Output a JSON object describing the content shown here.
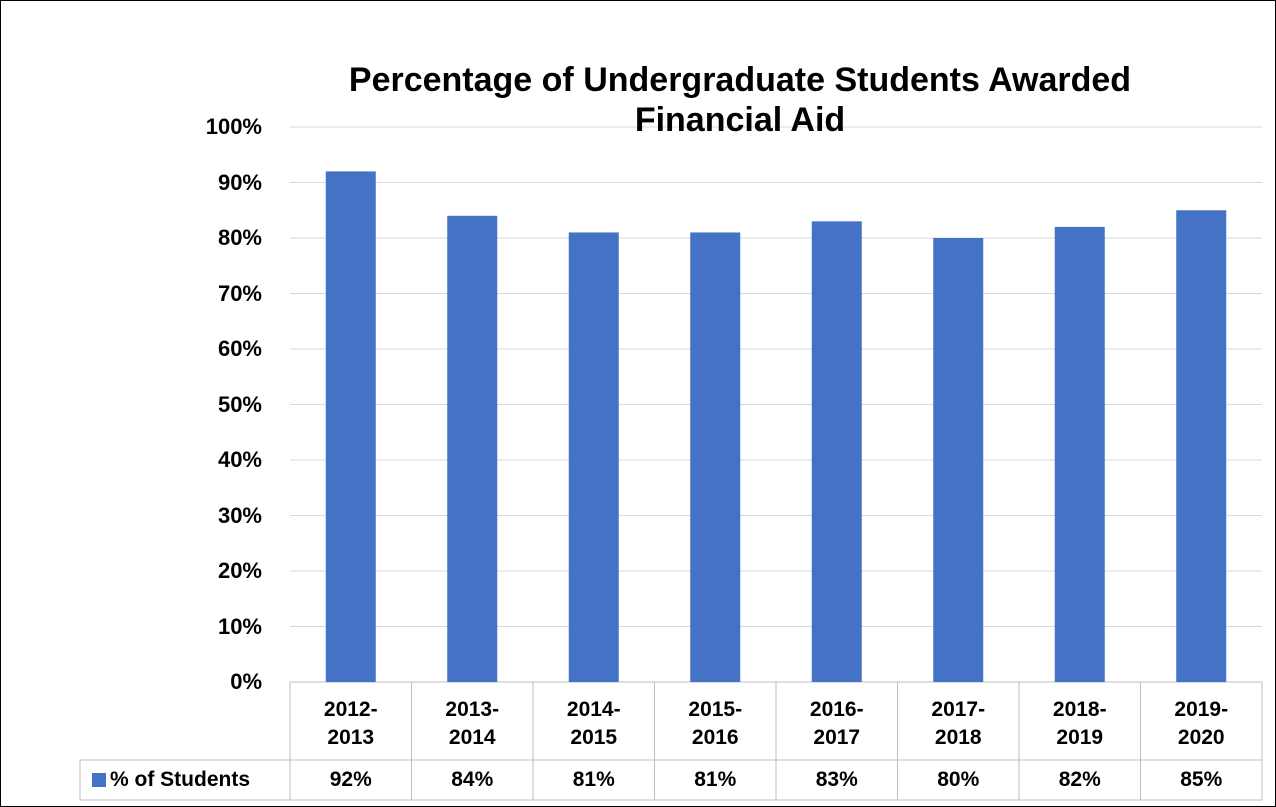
{
  "chart_data": {
    "type": "bar",
    "title": "Percentage of Undergraduate Students Awarded Financial Aid",
    "categories": [
      "2012-2013",
      "2013-2014",
      "2014-2015",
      "2015-2016",
      "2016-2017",
      "2017-2018",
      "2018-2019",
      "2019-2020"
    ],
    "series": [
      {
        "name": "% of Students",
        "color": "#4472c4",
        "values": [
          92,
          84,
          81,
          81,
          83,
          80,
          82,
          85
        ],
        "value_labels": [
          "92%",
          "84%",
          "81%",
          "81%",
          "83%",
          "80%",
          "82%",
          "85%"
        ]
      }
    ],
    "ylim": [
      0,
      100
    ],
    "yticks": [
      {
        "value": 0,
        "label": "0%"
      },
      {
        "value": 10,
        "label": "10%"
      },
      {
        "value": 20,
        "label": "20%"
      },
      {
        "value": 30,
        "label": "30%"
      },
      {
        "value": 40,
        "label": "40%"
      },
      {
        "value": 50,
        "label": "50%"
      },
      {
        "value": 60,
        "label": "60%"
      },
      {
        "value": 70,
        "label": "70%"
      },
      {
        "value": 80,
        "label": "80%"
      },
      {
        "value": 90,
        "label": "90%"
      },
      {
        "value": 100,
        "label": "100%"
      }
    ],
    "grid": true,
    "data_table": true
  }
}
